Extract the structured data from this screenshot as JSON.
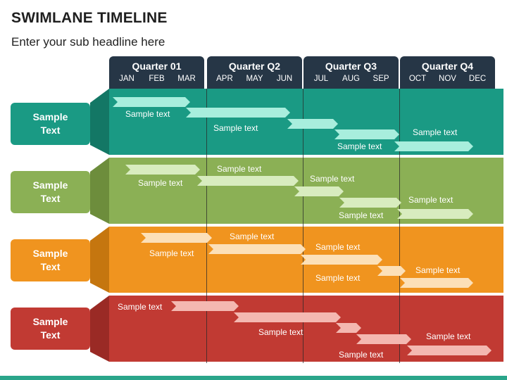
{
  "title": "SWIMLANE TIMELINE",
  "subtitle": "Enter your sub headline here",
  "quarters": [
    {
      "name": "Quarter 01",
      "months": [
        "JAN",
        "FEB",
        "MAR"
      ]
    },
    {
      "name": "Quarter Q2",
      "months": [
        "APR",
        "MAY",
        "JUN"
      ]
    },
    {
      "name": "Quarter Q3",
      "months": [
        "JUL",
        "AUG",
        "SEP"
      ]
    },
    {
      "name": "Quarter Q4",
      "months": [
        "OCT",
        "NOV",
        "DEC"
      ]
    }
  ],
  "lanes": [
    {
      "label": "Sample Text",
      "color": "#1a9a84",
      "dark": "#137765",
      "arrow": "#a8eedd",
      "items": [
        "Sample text",
        "Sample text",
        "Sample text",
        "Sample text"
      ]
    },
    {
      "label": "Sample Text",
      "color": "#8bb055",
      "dark": "#6d8d3c",
      "arrow": "#d8ecbf",
      "items": [
        "Sample text",
        "Sample text",
        "Sample text",
        "Sample text",
        "Sample text"
      ]
    },
    {
      "label": "Sample Text",
      "color": "#f0941f",
      "dark": "#c5760f",
      "arrow": "#fce0b8",
      "items": [
        "Sample text",
        "Sample text",
        "Sample text",
        "Sample text",
        "Sample text"
      ]
    },
    {
      "label": "Sample Text",
      "color": "#c13a33",
      "dark": "#9a2a25",
      "arrow": "#f4b8b1",
      "items": [
        "Sample text",
        "Sample text",
        "Sample text",
        "Sample text"
      ]
    }
  ]
}
